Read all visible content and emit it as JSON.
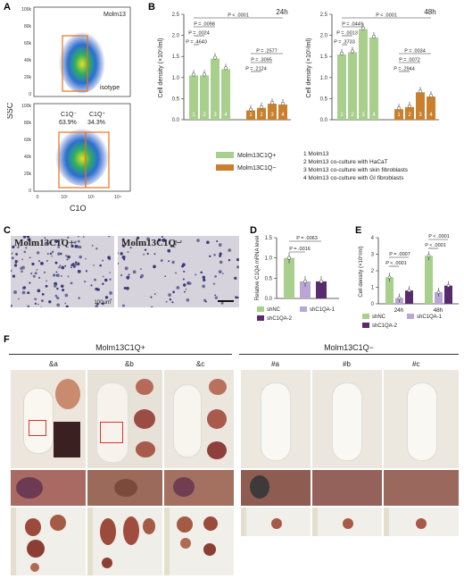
{
  "panel_letters": {
    "a": "A",
    "b": "B",
    "c": "C",
    "d": "D",
    "e": "E",
    "f": "F"
  },
  "colors": {
    "green": "#a8cf8c",
    "orange": "#c97f2c",
    "lilac": "#b9a6d4",
    "purple": "#5a2a6e",
    "flow_box": "#e8731a"
  },
  "flow": {
    "top_label": "Molm13",
    "isotype_label": "isotype",
    "neg_label": "C1Q⁻",
    "neg_pct": "63.9%",
    "pos_label": "C1Q⁺",
    "pos_pct": "34.3%",
    "xlabel": "C1Q",
    "ylabel": "SSC",
    "yticks": [
      "100k",
      "80k",
      "60k",
      "40k",
      "20k",
      "0"
    ],
    "xticks": [
      "0",
      "10²",
      "10³",
      "10⁴"
    ]
  },
  "panelB": {
    "ylabel": "Cell density (×10⁵/ml)",
    "left_title": "24h",
    "right_title": "48h",
    "bar_numbers": [
      "1",
      "2",
      "3",
      "4"
    ],
    "legend_pos": "Molm13C1Q+",
    "legend_neg": "Molm13C1Q−",
    "notes": [
      "1 Molm13",
      "2 Molm13 co-culture with HaCaT",
      "3 Molm13 co-culture with skin fibroblasts",
      "4 Molm13 co-culture with GI fibroblasts"
    ],
    "pvals_left": [
      "P < .0001",
      "P = .0098",
      "P = .0024",
      "P = .4640",
      "P = .2577",
      "P = .3095",
      "P = .2124"
    ],
    "pvals_right": [
      "P < .0001",
      "P = .0449",
      "P = .0013",
      "P = .3733",
      "P = .0034",
      "P = .0072",
      "P = .2944"
    ]
  },
  "panelC": {
    "label_pos": "Molm13C1Q+",
    "label_neg": "Molm13C1Q−",
    "scale": "100μm"
  },
  "panelD": {
    "ylabel": "Relative C1QA mRNA level",
    "pvals": [
      "P = .0063",
      "P = .0016"
    ],
    "legend": [
      "shNC",
      "shC1QA-1",
      "shC1QA-2"
    ]
  },
  "panelE": {
    "ylabel": "Cell density (×10⁵/ml)",
    "groups": [
      "24h",
      "48h"
    ],
    "pvals": [
      "P = .0007",
      "P < .0001",
      "P < .0001",
      "P < .0001"
    ],
    "legend": [
      "shNC",
      "shC1QA-1",
      "shC1QA-2"
    ]
  },
  "panelF": {
    "title_pos": "Molm13C1Q+",
    "title_neg": "Molm13C1Q−",
    "mice_pos": [
      "&a",
      "&b",
      "&c"
    ],
    "mice_neg": [
      "#a",
      "#b",
      "#c"
    ]
  },
  "chart_data": [
    {
      "type": "bar",
      "title": "24h",
      "ylabel": "Cell density (×10⁵/ml)",
      "ylim": [
        0,
        2.5
      ],
      "categories": [
        "1",
        "2",
        "3",
        "4"
      ],
      "series": [
        {
          "name": "Molm13C1Q+",
          "values": [
            1.05,
            1.05,
            1.45,
            1.2
          ]
        },
        {
          "name": "Molm13C1Q−",
          "values": [
            0.22,
            0.28,
            0.38,
            0.36
          ]
        }
      ]
    },
    {
      "type": "bar",
      "title": "48h",
      "ylabel": "Cell density (×10⁵/ml)",
      "ylim": [
        0,
        2.5
      ],
      "categories": [
        "1",
        "2",
        "3",
        "4"
      ],
      "series": [
        {
          "name": "Molm13C1Q+",
          "values": [
            1.55,
            1.6,
            2.15,
            1.95
          ]
        },
        {
          "name": "Molm13C1Q−",
          "values": [
            0.25,
            0.3,
            0.65,
            0.55
          ]
        }
      ]
    },
    {
      "type": "bar",
      "ylabel": "Relative C1QA mRNA level",
      "ylim": [
        0,
        1.5
      ],
      "categories": [
        "shNC",
        "shC1QA-1",
        "shC1QA-2"
      ],
      "values": [
        1.0,
        0.42,
        0.42
      ]
    },
    {
      "type": "bar",
      "ylabel": "Cell density (×10⁵/ml)",
      "ylim": [
        0,
        4
      ],
      "categories": [
        "24h",
        "48h"
      ],
      "series": [
        {
          "name": "shNC",
          "values": [
            1.6,
            2.9
          ]
        },
        {
          "name": "shC1QA-1",
          "values": [
            0.35,
            0.7
          ]
        },
        {
          "name": "shC1QA-2",
          "values": [
            0.8,
            1.1
          ]
        }
      ]
    }
  ]
}
